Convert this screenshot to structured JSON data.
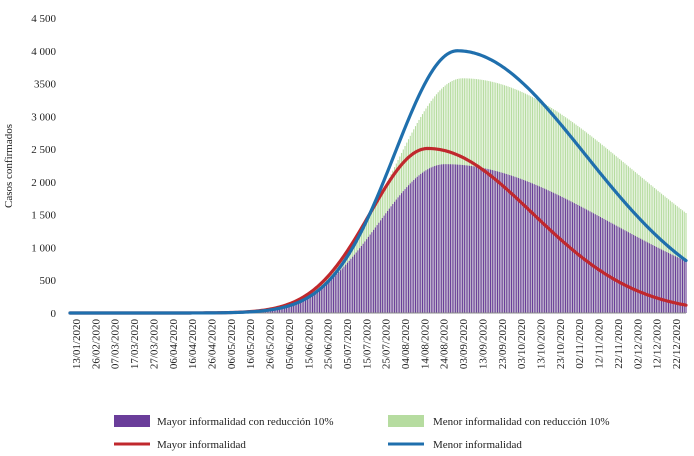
{
  "chart_data": {
    "type": "bar+line",
    "title": "",
    "xlabel": "",
    "ylabel": "Casos confirmados",
    "ylim": [
      0,
      4500
    ],
    "yticks": [
      "0",
      "500",
      "1 000",
      "1 500",
      "2 000",
      "2 500",
      "3 000",
      "3500",
      "4 000",
      "4 500"
    ],
    "ytick_values": [
      0,
      500,
      1000,
      1500,
      2000,
      2500,
      3000,
      3500,
      4000,
      4500
    ],
    "x_start": "13/01/2020",
    "x_end": "31/12/2020",
    "x_days_total": 353,
    "xticks": [
      "13/01/2020",
      "26/02/2020",
      "07/03/2020",
      "17/03/2020",
      "27/03/2020",
      "06/04/2020",
      "16/04/2020",
      "26/04/2020",
      "06/05/2020",
      "16/05/2020",
      "26/05/2020",
      "05/06/2020",
      "15/06/2020",
      "25/06/2020",
      "05/07/2020",
      "15/07/2020",
      "25/07/2020",
      "04/08/2020",
      "14/08/2020",
      "24/08/2020",
      "03/09/2020",
      "13/09/2020",
      "23/09/2020",
      "03/10/2020",
      "13/10/2020",
      "23/10/2020",
      "02/11/2020",
      "12/11/2020",
      "22/11/2020",
      "02/12/2020",
      "12/12/2020",
      "22/12/2020"
    ],
    "series": [
      {
        "name": "Mayor informalidad con reducción 10%",
        "kind": "bar",
        "color": "#6a3d9a",
        "peak_day": 215,
        "peak": 2270,
        "sigma_left": 38,
        "sigma_right": 95
      },
      {
        "name": "Menor informalidad con reducción 10%",
        "kind": "bar",
        "color": "#b6dca0",
        "peak_day": 225,
        "peak": 3580,
        "sigma_left": 40,
        "sigma_right": 98
      },
      {
        "name": "Mayor informalidad",
        "kind": "line",
        "color": "#c0282d",
        "peak_day": 205,
        "peak": 2510,
        "sigma_left": 33,
        "sigma_right": 60
      },
      {
        "name": "Menor informalidad",
        "kind": "line",
        "color": "#1f6fad",
        "peak_day": 222,
        "peak": 4000,
        "sigma_left": 36,
        "sigma_right": 73
      }
    ],
    "legend_position": "bottom"
  }
}
